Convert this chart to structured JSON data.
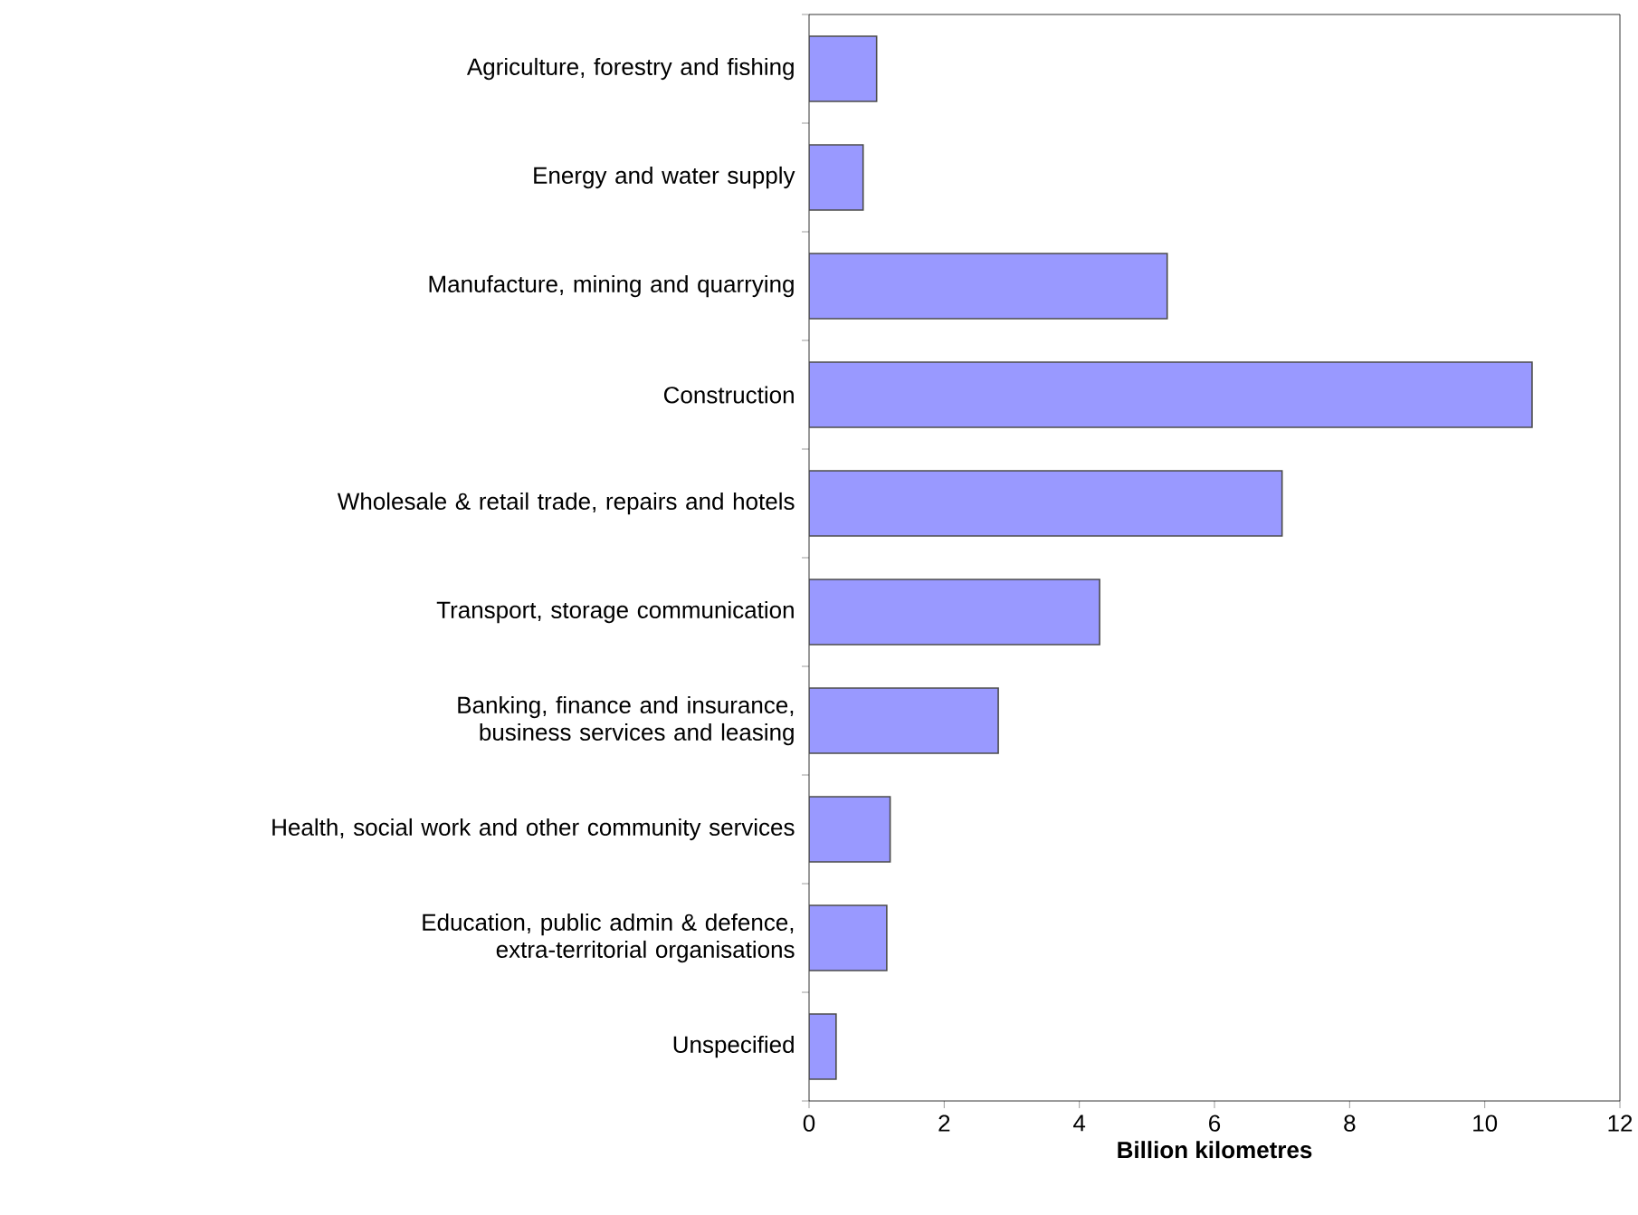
{
  "chart_data": {
    "type": "bar",
    "orientation": "horizontal",
    "xlabel": "Billion kilometres",
    "categories": [
      "Agriculture, forestry and fishing",
      "Energy and water supply",
      "Manufacture, mining and quarrying",
      "Construction",
      "Wholesale & retail trade, repairs and hotels",
      "Transport, storage communication",
      "Banking, finance and insurance, business services and leasing",
      "Health, social work and other community services",
      "Education, public admin & defence, extra-territorial organisations",
      "Unspecified"
    ],
    "values": [
      1.0,
      0.8,
      5.3,
      10.7,
      7.0,
      4.3,
      2.8,
      1.2,
      1.15,
      0.4
    ],
    "color": "#9999ff",
    "xlim": [
      0,
      12
    ],
    "xticks": [
      0,
      2,
      4,
      6,
      8,
      10,
      12
    ],
    "grid": false
  }
}
